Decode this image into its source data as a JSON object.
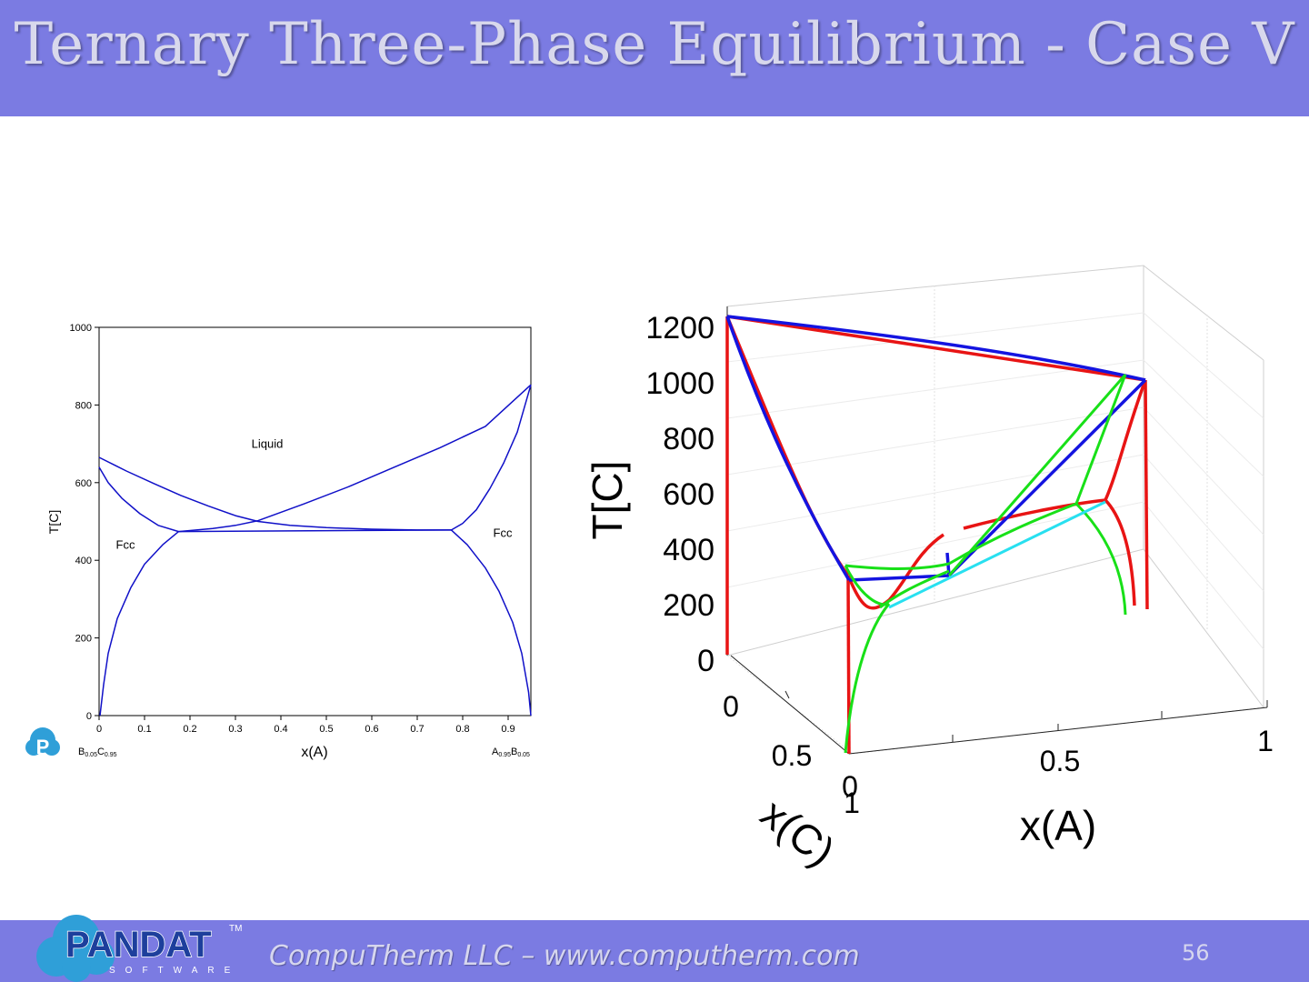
{
  "slide": {
    "title": "Ternary Three-Phase Equilibrium - Case V",
    "footer": "CompuTherm LLC – www.computherm.com",
    "page_number": "56",
    "logo_text": "PANDAT",
    "logo_sub": "SOFTWARE",
    "logo_tm": "TM",
    "colors": {
      "band": "#7b7be2",
      "title_text": "#d8d8ec"
    }
  },
  "chart_data": [
    {
      "type": "line",
      "xlabel": "x(A)",
      "ylabel": "T[C]",
      "xlim": [
        0,
        0.95
      ],
      "ylim": [
        0,
        1000
      ],
      "x_ticks": [
        "0",
        "0.1",
        "0.2",
        "0.3",
        "0.4",
        "0.5",
        "0.6",
        "0.7",
        "0.8",
        "0.9"
      ],
      "y_ticks": [
        "0",
        "200",
        "400",
        "600",
        "800",
        "1000"
      ],
      "left_end_label": {
        "base1": "B",
        "sub1": "0.05",
        "base2": "C",
        "sub2": "0.95"
      },
      "right_end_label": {
        "base1": "A",
        "sub1": "0.95",
        "base2": "B",
        "sub2": "0.05"
      },
      "annotations": [
        {
          "text": "Liquid",
          "x": 0.37,
          "y": 690
        },
        {
          "text": "Fcc",
          "x": 0.058,
          "y": 430
        },
        {
          "text": "Fcc",
          "x": 0.888,
          "y": 460
        }
      ],
      "line_color": "#1010c8",
      "series": [
        {
          "values": [
            [
              0,
              665
            ],
            [
              0.06,
              630
            ],
            [
              0.12,
              598
            ],
            [
              0.18,
              567
            ],
            [
              0.24,
              540
            ],
            [
              0.3,
              515
            ],
            [
              0.35,
              500
            ],
            [
              0.42,
              490
            ],
            [
              0.5,
              484
            ],
            [
              0.6,
              480
            ],
            [
              0.7,
              478
            ],
            [
              0.775,
              478
            ]
          ]
        },
        {
          "values": [
            [
              0,
              640
            ],
            [
              0.02,
              600
            ],
            [
              0.05,
              560
            ],
            [
              0.09,
              520
            ],
            [
              0.13,
              490
            ],
            [
              0.175,
              474
            ]
          ]
        },
        {
          "values": [
            [
              0.175,
              474
            ],
            [
              0.25,
              482
            ],
            [
              0.3,
              490
            ],
            [
              0.35,
              502
            ],
            [
              0.45,
              545
            ],
            [
              0.55,
              590
            ],
            [
              0.65,
              640
            ],
            [
              0.75,
              690
            ],
            [
              0.85,
              745
            ],
            [
              0.95,
              852
            ]
          ]
        },
        {
          "values": [
            [
              0.775,
              478
            ],
            [
              0.8,
              495
            ],
            [
              0.83,
              530
            ],
            [
              0.86,
              585
            ],
            [
              0.89,
              650
            ],
            [
              0.92,
              730
            ],
            [
              0.95,
              852
            ]
          ]
        },
        {
          "values": [
            [
              0.175,
              474
            ],
            [
              0.775,
              478
            ]
          ]
        },
        {
          "values": [
            [
              0.002,
              0
            ],
            [
              0.01,
              80
            ],
            [
              0.02,
              160
            ],
            [
              0.04,
              250
            ],
            [
              0.07,
              330
            ],
            [
              0.1,
              390
            ],
            [
              0.14,
              440
            ],
            [
              0.175,
              474
            ]
          ]
        },
        {
          "values": [
            [
              0.775,
              478
            ],
            [
              0.81,
              440
            ],
            [
              0.85,
              380
            ],
            [
              0.88,
              320
            ],
            [
              0.91,
              240
            ],
            [
              0.93,
              160
            ],
            [
              0.945,
              60
            ],
            [
              0.95,
              0
            ]
          ]
        }
      ]
    },
    {
      "type": "line",
      "xlabel": "x(A)",
      "ylabel": "T[C]",
      "zlabel": "x(C)",
      "t_ticks": [
        "0",
        "200",
        "400",
        "600",
        "800",
        "1000",
        "1200"
      ],
      "xa_ticks": [
        "0",
        "0.5",
        "1"
      ],
      "xc_ticks": [
        "0",
        "0.5",
        "1"
      ],
      "colors": {
        "liquidus": "#e81414",
        "solidus": "#1414e0",
        "three_phase_a": "#18e018",
        "three_phase_b": "#28e0f0"
      }
    }
  ]
}
